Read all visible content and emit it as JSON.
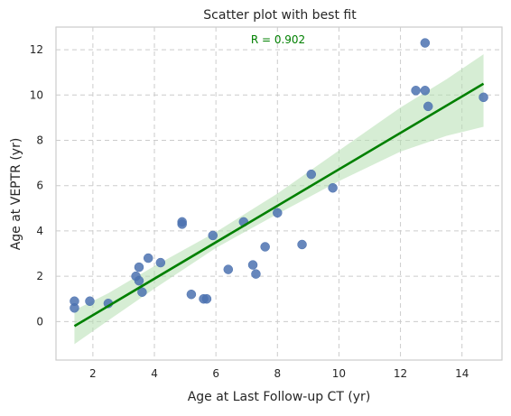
{
  "chart_data": {
    "type": "scatter",
    "title": "Scatter plot with best fit",
    "xlabel": "Age at Last Follow-up CT (yr)",
    "ylabel": "Age at VEPTR (yr)",
    "annotation": "R = 0.902",
    "xlim": [
      0.8,
      15.3
    ],
    "ylim": [
      -1.7,
      13.0
    ],
    "x_ticks": [
      2,
      4,
      6,
      8,
      10,
      12,
      14
    ],
    "y_ticks": [
      0,
      2,
      4,
      6,
      8,
      10,
      12
    ],
    "grid": true,
    "legend": "none",
    "colors": {
      "points": "#4C72B0",
      "fit_line": "#008000",
      "confidence_band": "#b5dfb0",
      "annotation": "#008000",
      "grid": "#cccccc",
      "spine": "#cccccc",
      "text": "#262626"
    },
    "points": [
      {
        "x": 1.4,
        "y": 0.9
      },
      {
        "x": 1.4,
        "y": 0.6
      },
      {
        "x": 1.9,
        "y": 0.9
      },
      {
        "x": 2.5,
        "y": 0.8
      },
      {
        "x": 3.4,
        "y": 2.0
      },
      {
        "x": 3.5,
        "y": 2.4
      },
      {
        "x": 3.5,
        "y": 1.8
      },
      {
        "x": 3.6,
        "y": 1.3
      },
      {
        "x": 3.8,
        "y": 2.8
      },
      {
        "x": 4.2,
        "y": 2.6
      },
      {
        "x": 4.9,
        "y": 4.4
      },
      {
        "x": 4.9,
        "y": 4.3
      },
      {
        "x": 5.2,
        "y": 1.2
      },
      {
        "x": 5.6,
        "y": 1.0
      },
      {
        "x": 5.7,
        "y": 1.0
      },
      {
        "x": 5.9,
        "y": 3.8
      },
      {
        "x": 6.4,
        "y": 2.3
      },
      {
        "x": 6.9,
        "y": 4.4
      },
      {
        "x": 7.2,
        "y": 2.5
      },
      {
        "x": 7.3,
        "y": 2.1
      },
      {
        "x": 7.6,
        "y": 3.3
      },
      {
        "x": 8.0,
        "y": 4.8
      },
      {
        "x": 8.8,
        "y": 3.4
      },
      {
        "x": 9.1,
        "y": 6.5
      },
      {
        "x": 9.8,
        "y": 5.9
      },
      {
        "x": 12.5,
        "y": 10.2
      },
      {
        "x": 12.8,
        "y": 10.2
      },
      {
        "x": 12.8,
        "y": 12.3
      },
      {
        "x": 12.9,
        "y": 9.5
      },
      {
        "x": 14.7,
        "y": 9.9
      }
    ],
    "fit_line": {
      "x": [
        1.4,
        14.7
      ],
      "y": [
        -0.2,
        10.5
      ]
    },
    "confidence_band": {
      "x": [
        1.4,
        2.5,
        4.0,
        6.0,
        8.0,
        10.0,
        12.0,
        13.5,
        14.7
      ],
      "lower": [
        -1.0,
        0.05,
        1.45,
        3.25,
        4.75,
        6.2,
        7.5,
        8.2,
        8.6
      ],
      "upper": [
        0.5,
        1.25,
        2.45,
        3.95,
        5.65,
        7.55,
        9.45,
        10.7,
        11.8
      ]
    }
  }
}
